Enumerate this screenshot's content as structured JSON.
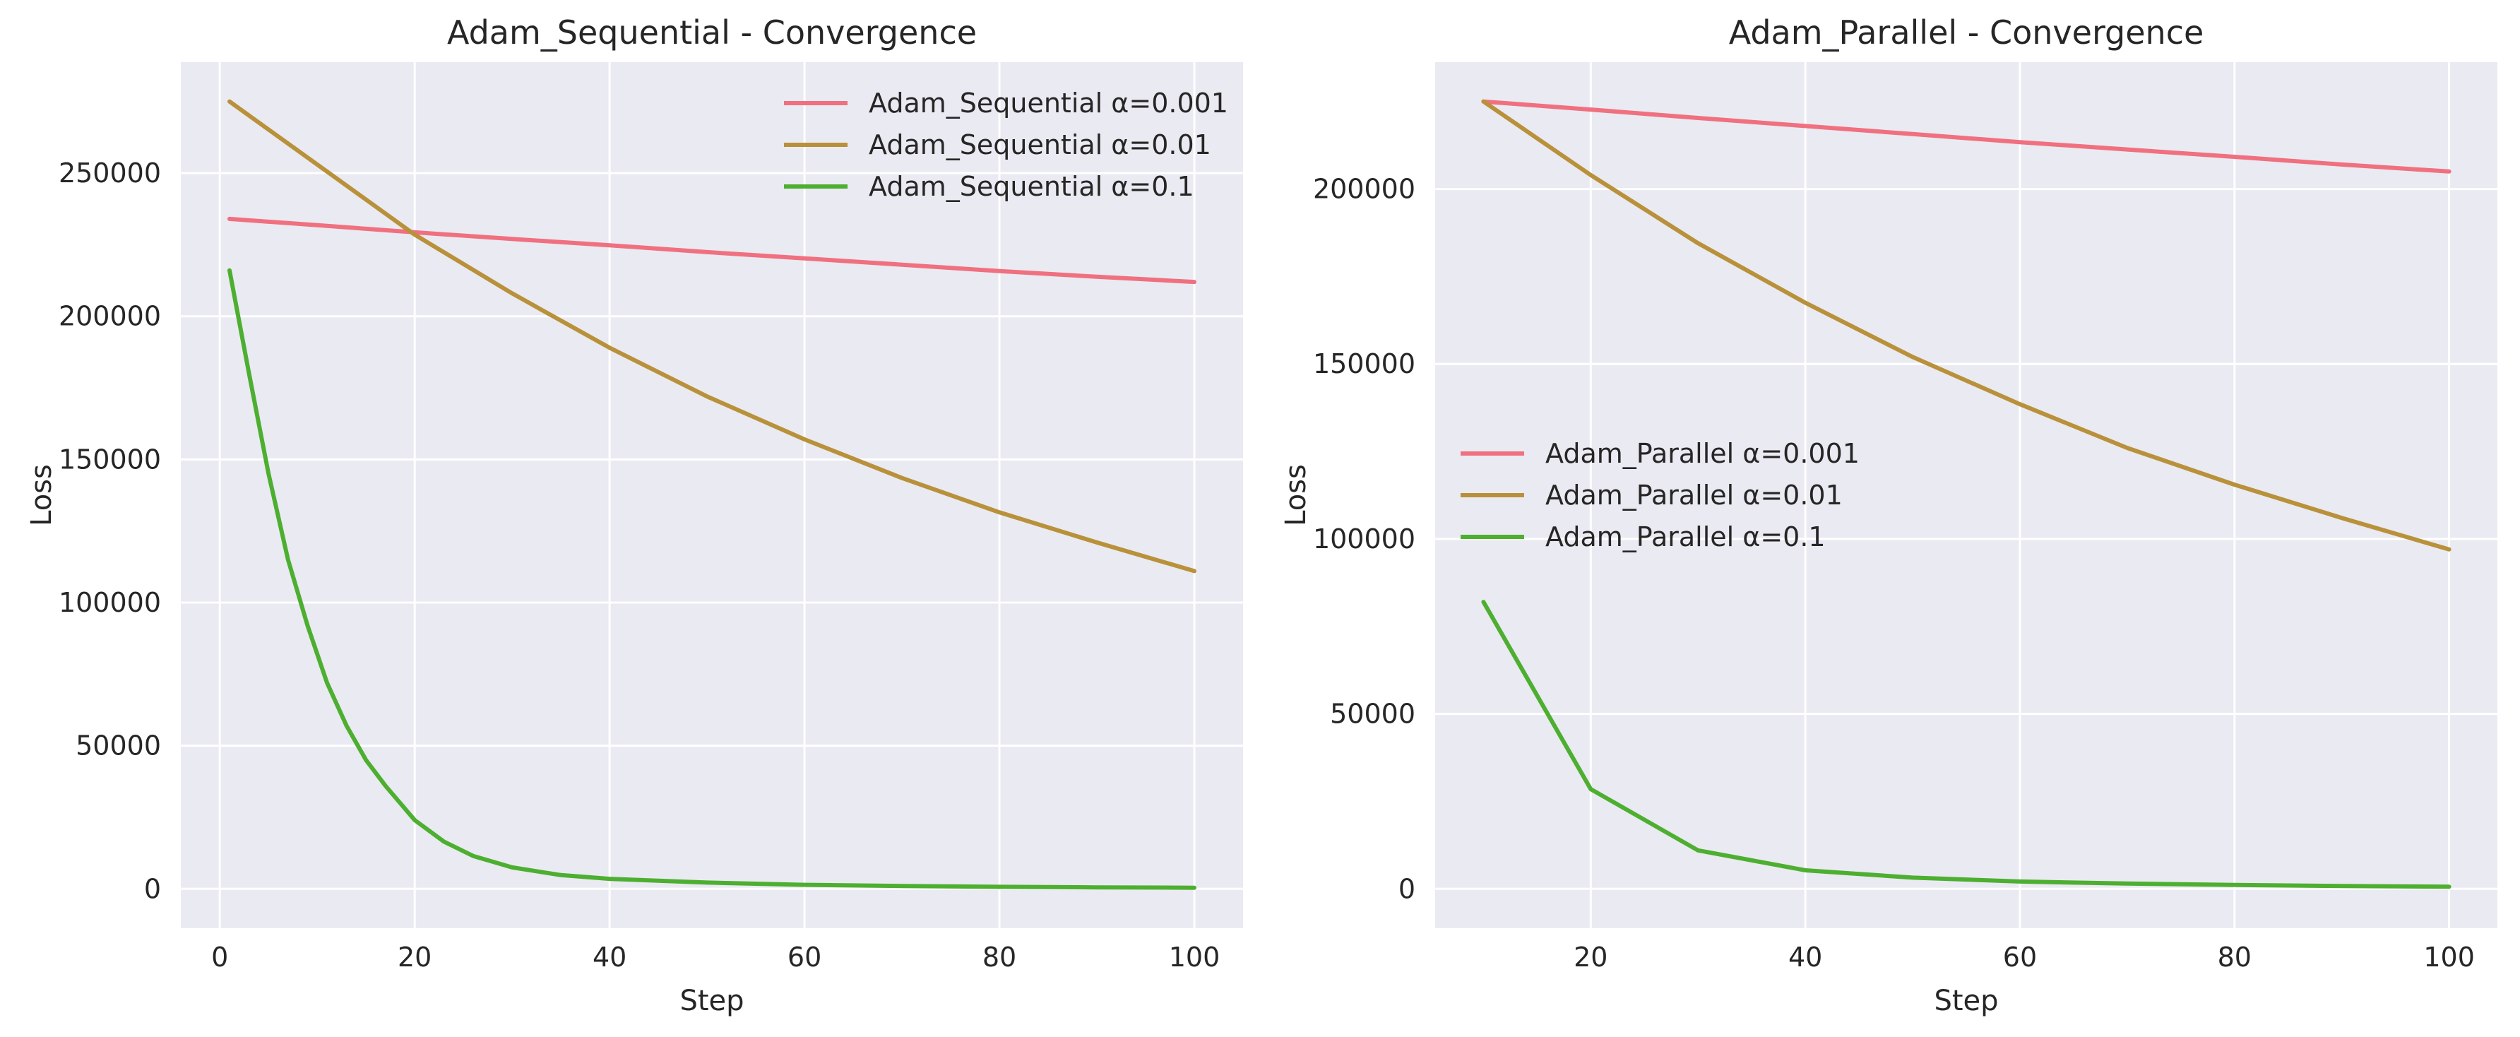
{
  "chart_data": [
    {
      "type": "line",
      "title": "Adam_Sequential - Convergence",
      "xlabel": "Step",
      "ylabel": "Loss",
      "xlim": [
        -4,
        105
      ],
      "ylim": [
        -13750,
        288750
      ],
      "xticks": [
        0,
        20,
        40,
        60,
        80,
        100
      ],
      "yticks": [
        0,
        50000,
        100000,
        150000,
        200000,
        250000
      ],
      "grid": true,
      "legend": "top-right",
      "series": [
        {
          "name": "Adam_Sequential α=0.001",
          "color": "#f0707f",
          "x": [
            1,
            10,
            20,
            30,
            40,
            50,
            60,
            70,
            80,
            90,
            100
          ],
          "y": [
            234000,
            231800,
            229300,
            227000,
            224800,
            222400,
            220200,
            218000,
            215800,
            213800,
            212000
          ]
        },
        {
          "name": "Adam_Sequential α=0.01",
          "color": "#b8913a",
          "x": [
            1,
            10,
            20,
            30,
            40,
            50,
            60,
            70,
            80,
            90,
            100
          ],
          "y": [
            275000,
            253000,
            228500,
            208000,
            189000,
            172000,
            157000,
            143500,
            131500,
            121000,
            111000
          ]
        },
        {
          "name": "Adam_Sequential α=0.1",
          "color": "#4daf30",
          "x": [
            1,
            3,
            5,
            7,
            9,
            11,
            13,
            15,
            17,
            20,
            23,
            26,
            30,
            35,
            40,
            50,
            60,
            70,
            80,
            90,
            100
          ],
          "y": [
            216000,
            180000,
            145000,
            115000,
            92000,
            72000,
            57000,
            45000,
            36000,
            24000,
            16500,
            11500,
            7500,
            4800,
            3500,
            2200,
            1400,
            1000,
            700,
            500,
            400
          ]
        }
      ]
    },
    {
      "type": "line",
      "title": "Adam_Parallel - Convergence",
      "xlabel": "Step",
      "ylabel": "Loss",
      "xlim": [
        5.5,
        104.5
      ],
      "ylim": [
        -11250,
        236250
      ],
      "xticks": [
        20,
        40,
        60,
        80,
        100
      ],
      "yticks": [
        0,
        50000,
        100000,
        150000,
        200000
      ],
      "grid": true,
      "legend": "center-left",
      "series": [
        {
          "name": "Adam_Parallel α=0.001",
          "color": "#f0707f",
          "x": [
            10,
            20,
            30,
            40,
            50,
            60,
            70,
            80,
            90,
            100
          ],
          "y": [
            225000,
            222700,
            220300,
            218000,
            215700,
            213400,
            211300,
            209200,
            207000,
            205000
          ]
        },
        {
          "name": "Adam_Parallel α=0.01",
          "color": "#b8913a",
          "x": [
            10,
            20,
            30,
            40,
            50,
            60,
            70,
            80,
            90,
            100
          ],
          "y": [
            225000,
            204000,
            184500,
            167500,
            152000,
            138500,
            126000,
            115500,
            106000,
            97000
          ]
        },
        {
          "name": "Adam_Parallel α=0.1",
          "color": "#4daf30",
          "x": [
            10,
            20,
            30,
            40,
            50,
            60,
            70,
            80,
            90,
            100
          ],
          "y": [
            82000,
            28500,
            11000,
            5300,
            3200,
            2100,
            1500,
            1100,
            800,
            600
          ]
        }
      ]
    }
  ]
}
